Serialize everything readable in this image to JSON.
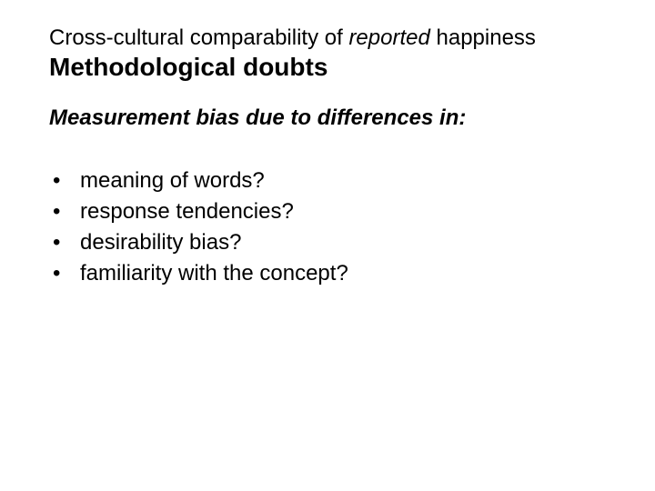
{
  "colors": {
    "background": "#ffffff",
    "text": "#000000"
  },
  "typography": {
    "family": "Arial",
    "supertitle_size_pt": 18,
    "title_size_pt": 21,
    "title_weight": "bold",
    "subhead_size_pt": 18,
    "subhead_style": "bold italic",
    "body_size_pt": 18
  },
  "supertitle": {
    "pre": "Cross-cultural comparability of ",
    "em": "reported",
    "post": " happiness"
  },
  "title": "Methodological doubts",
  "subhead": "Measurement bias due to differences in:",
  "bullets": [
    "meaning of words?",
    "response tendencies?",
    "desirability bias?",
    "familiarity with the concept?"
  ]
}
